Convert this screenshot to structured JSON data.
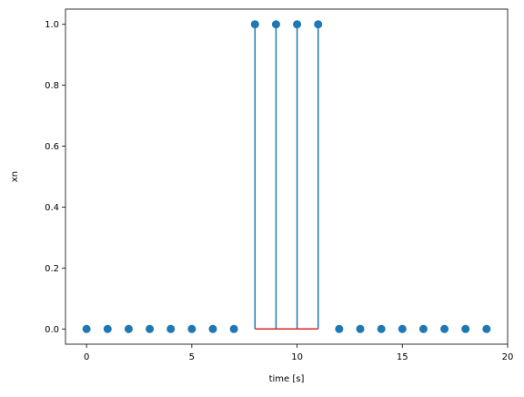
{
  "chart_data": {
    "type": "stem",
    "x": [
      0,
      1,
      2,
      3,
      4,
      5,
      6,
      7,
      8,
      9,
      10,
      11,
      12,
      13,
      14,
      15,
      16,
      17,
      18,
      19
    ],
    "values": [
      0,
      0,
      0,
      0,
      0,
      0,
      0,
      0,
      1,
      1,
      1,
      1,
      0,
      0,
      0,
      0,
      0,
      0,
      0,
      0
    ],
    "xlabel": "time [s]",
    "ylabel": "xn",
    "xlim": [
      -1,
      20
    ],
    "ylim": [
      -0.05,
      1.05
    ],
    "xticks": [
      0,
      5,
      10,
      15,
      20
    ],
    "xtick_labels": [
      "0",
      "5",
      "10",
      "15",
      "20"
    ],
    "yticks": [
      0.0,
      0.2,
      0.4,
      0.6,
      0.8,
      1.0
    ],
    "ytick_labels": [
      "0.0",
      "0.2",
      "0.4",
      "0.6",
      "0.8",
      "1.0"
    ],
    "grid": false,
    "colors": {
      "marker": "#1f77b4",
      "stem": "#1f77b4",
      "baseline": "#d62728"
    }
  }
}
